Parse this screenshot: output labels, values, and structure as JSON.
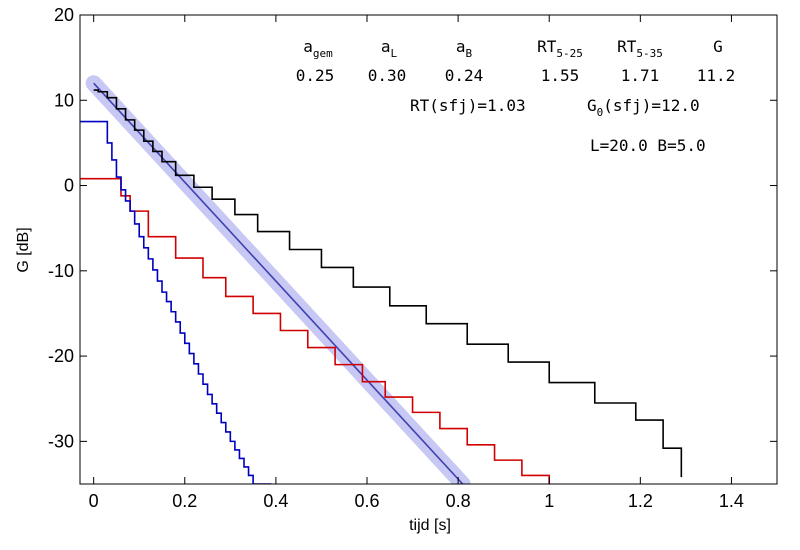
{
  "chart_data": {
    "type": "line",
    "title": "",
    "xlabel": "tijd  [s]",
    "ylabel": "G  [dB]",
    "xlim": [
      -0.03,
      1.5
    ],
    "ylim": [
      -35,
      20
    ],
    "xticks": [
      0,
      0.2,
      0.4,
      0.6,
      0.8,
      1,
      1.2,
      1.4
    ],
    "xtick_labels": [
      "0",
      "0.2",
      "0.4",
      "0.6",
      "0.8",
      "1",
      "1.2",
      "1.4"
    ],
    "yticks": [
      -30,
      -20,
      -10,
      0,
      10,
      20
    ],
    "ytick_labels": [
      "-30",
      "-20",
      "-10",
      "0",
      "10",
      "20"
    ],
    "grid": false,
    "series": [
      {
        "kind": "fit-band",
        "color": "#c8c8f5",
        "x": [
          0,
          0.81
        ],
        "y": [
          12.0,
          -35
        ]
      },
      {
        "kind": "line",
        "color": "#4040b0",
        "x": [
          0,
          0.81
        ],
        "y": [
          12.0,
          -35
        ]
      },
      {
        "kind": "step",
        "color": "#000000",
        "x": [
          0,
          0.01,
          0.03,
          0.05,
          0.07,
          0.09,
          0.11,
          0.13,
          0.15,
          0.18,
          0.22,
          0.26,
          0.31,
          0.36,
          0.43,
          0.5,
          0.57,
          0.65,
          0.73,
          0.82,
          0.91,
          1.0,
          1.1,
          1.19,
          1.25,
          1.29
        ],
        "y": [
          11.2,
          11.0,
          10.3,
          9.0,
          7.7,
          6.5,
          5.2,
          4.0,
          2.8,
          1.2,
          -0.2,
          -1.6,
          -3.4,
          -5.4,
          -7.5,
          -9.6,
          -11.9,
          -14.1,
          -16.2,
          -18.6,
          -20.7,
          -23.1,
          -25.5,
          -27.5,
          -30.8,
          -34.2
        ]
      },
      {
        "kind": "step",
        "color": "#d00000",
        "x": [
          -0.03,
          0.05,
          0.06,
          0.08,
          0.12,
          0.18,
          0.24,
          0.29,
          0.35,
          0.41,
          0.47,
          0.53,
          0.59,
          0.64,
          0.7,
          0.76,
          0.82,
          0.88,
          0.94,
          1.0
        ],
        "y": [
          0.8,
          0.8,
          -1.2,
          -3.0,
          -6.0,
          -8.5,
          -10.8,
          -13.0,
          -15.0,
          -17.0,
          -19.0,
          -21.0,
          -23.0,
          -24.8,
          -26.6,
          -28.5,
          -30.4,
          -32.2,
          -34.0,
          -35.0
        ]
      },
      {
        "kind": "step",
        "color": "#0000c0",
        "x": [
          -0.03,
          0.02,
          0.03,
          0.04,
          0.05,
          0.06,
          0.07,
          0.08,
          0.09,
          0.1,
          0.11,
          0.12,
          0.13,
          0.14,
          0.15,
          0.16,
          0.17,
          0.18,
          0.19,
          0.2,
          0.21,
          0.22,
          0.23,
          0.24,
          0.25,
          0.26,
          0.27,
          0.28,
          0.29,
          0.3,
          0.31,
          0.32,
          0.33,
          0.34,
          0.35,
          0.36,
          0.37,
          0.38,
          0.39
        ],
        "y": [
          7.5,
          7.5,
          5.0,
          3.0,
          1.0,
          -0.5,
          -1.8,
          -3.0,
          -4.5,
          -6.0,
          -7.3,
          -8.6,
          -9.9,
          -11.2,
          -12.5,
          -13.6,
          -14.8,
          -16.0,
          -17.3,
          -18.5,
          -19.7,
          -20.9,
          -22.1,
          -23.3,
          -24.5,
          -25.6,
          -26.7,
          -27.8,
          -28.9,
          -30.0,
          -31.0,
          -32.0,
          -33.0,
          -34.0,
          -35.0,
          -35.0,
          -35.0,
          -35.0,
          -35.0
        ]
      }
    ],
    "annotations": {
      "headers": [
        {
          "base": "a",
          "sub": "gem"
        },
        {
          "base": "a",
          "sub": "L"
        },
        {
          "base": "a",
          "sub": "B"
        },
        {
          "base": "RT",
          "sub": "5-25"
        },
        {
          "base": "RT",
          "sub": "5-35"
        },
        {
          "base": "G",
          "sub": ""
        }
      ],
      "values": [
        "0.25",
        "0.30",
        "0.24",
        "1.55",
        "1.71",
        "11.2"
      ],
      "rt_sfj": "RT(sfj)=1.03",
      "g0_base": "G",
      "g0_sub": "0",
      "g0_rest": "(sfj)=12.0",
      "dims": "L=20.0 B=5.0"
    }
  }
}
